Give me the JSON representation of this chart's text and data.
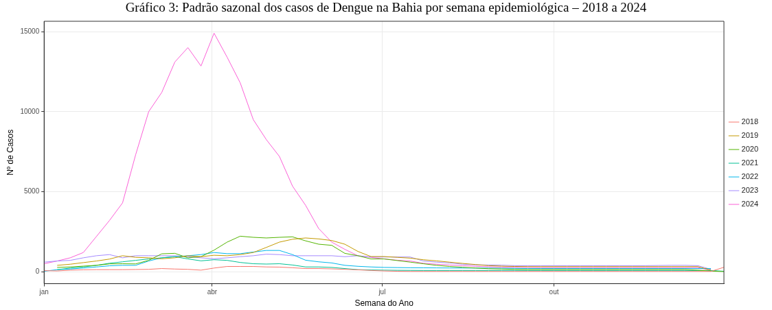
{
  "chart_data": {
    "type": "line",
    "title": "Gráfico 3: Padrão sazonal dos casos de Dengue na Bahia por semana epidemiológica – 2018 a 2024",
    "xlabel": "Semana do Ano",
    "ylabel": "Nº de Casos",
    "x": [
      "--01-01",
      "--01-08",
      "--01-15",
      "--01-22",
      "--01-29",
      "--02-05",
      "--02-12",
      "--02-19",
      "--02-26",
      "--03-05",
      "--03-12",
      "--03-19",
      "--03-26",
      "--04-02",
      "--04-09",
      "--04-16",
      "--04-23",
      "--04-30",
      "--05-07",
      "--05-14",
      "--05-21",
      "--05-28",
      "--06-04",
      "--06-11",
      "--06-18",
      "--06-25",
      "--07-02",
      "--07-09",
      "--07-16",
      "--07-23",
      "--07-30",
      "--08-06",
      "--08-13",
      "--08-20",
      "--08-27",
      "--09-03",
      "--09-10",
      "--09-17",
      "--09-24",
      "--10-01",
      "--10-08",
      "--10-15",
      "--10-22",
      "--10-29",
      "--11-05",
      "--11-12",
      "--11-19",
      "--11-26",
      "--12-03",
      "--12-10",
      "--12-17",
      "--12-24",
      "--12-31"
    ],
    "xlim": [
      "--01-01",
      "--12-31"
    ],
    "xticks": [
      {
        "value": "--01-01",
        "label": "jan"
      },
      {
        "value": "--04-01",
        "label": "abr"
      },
      {
        "value": "--07-01",
        "label": "jul"
      },
      {
        "value": "--10-01",
        "label": "out"
      }
    ],
    "ylim": [
      -745,
      15645
    ],
    "yticks": [
      0,
      5000,
      10000,
      15000
    ],
    "grid": true,
    "legend": "right",
    "marker": "none",
    "line_style": "solid",
    "series": [
      {
        "name": "2018",
        "color": "#f8766d",
        "values": [
          70,
          50,
          100,
          120,
          130,
          130,
          130,
          140,
          150,
          200,
          170,
          150,
          100,
          230,
          330,
          330,
          330,
          300,
          290,
          250,
          200,
          200,
          180,
          150,
          120,
          80,
          50,
          30,
          20,
          20,
          20,
          20,
          20,
          20,
          20,
          20,
          20,
          20,
          20,
          20,
          20,
          20,
          20,
          20,
          20,
          20,
          20,
          20,
          20,
          20,
          20,
          20,
          280
        ]
      },
      {
        "name": "2019",
        "color": "#c49a00",
        "values": [
          null,
          400,
          470,
          570,
          670,
          790,
          1000,
          900,
          870,
          810,
          870,
          1000,
          940,
          1030,
          1000,
          1070,
          1200,
          1520,
          1850,
          2030,
          2110,
          2050,
          1950,
          1720,
          1270,
          950,
          950,
          900,
          850,
          750,
          680,
          600,
          520,
          450,
          380,
          350,
          330,
          320,
          320,
          320,
          320,
          320,
          320,
          320,
          320,
          320,
          320,
          320,
          320,
          320,
          320,
          100,
          null
        ]
      },
      {
        "name": "2020",
        "color": "#53b400",
        "values": [
          null,
          270,
          300,
          350,
          400,
          490,
          500,
          490,
          710,
          1120,
          1150,
          870,
          940,
          1350,
          1850,
          2220,
          2150,
          2110,
          2150,
          2180,
          1930,
          1720,
          1650,
          1150,
          1000,
          800,
          800,
          700,
          600,
          500,
          400,
          330,
          280,
          230,
          190,
          170,
          150,
          140,
          140,
          140,
          140,
          140,
          140,
          140,
          140,
          140,
          140,
          140,
          140,
          140,
          100,
          40,
          10
        ]
      },
      {
        "name": "2021",
        "color": "#00c094",
        "values": [
          null,
          130,
          230,
          300,
          400,
          530,
          620,
          710,
          800,
          870,
          940,
          800,
          680,
          750,
          710,
          580,
          500,
          480,
          500,
          420,
          300,
          300,
          270,
          200,
          130,
          110,
          100,
          90,
          85,
          80,
          80,
          80,
          80,
          80,
          80,
          80,
          80,
          80,
          80,
          80,
          80,
          80,
          80,
          80,
          80,
          80,
          80,
          80,
          80,
          80,
          80,
          80,
          30
        ]
      },
      {
        "name": "2022",
        "color": "#00b6eb",
        "values": [
          30,
          130,
          170,
          230,
          300,
          370,
          400,
          400,
          670,
          870,
          940,
          1000,
          1070,
          1200,
          1130,
          1130,
          1230,
          1330,
          1330,
          1070,
          720,
          620,
          550,
          400,
          340,
          300,
          270,
          260,
          250,
          245,
          240,
          235,
          230,
          230,
          230,
          220,
          210,
          200,
          200,
          200,
          200,
          200,
          200,
          200,
          200,
          200,
          200,
          200,
          200,
          200,
          200,
          200,
          null
        ]
      },
      {
        "name": "2023",
        "color": "#a58aff",
        "values": [
          600,
          670,
          710,
          870,
          1000,
          1070,
          870,
          1000,
          1000,
          1000,
          1000,
          940,
          870,
          810,
          870,
          940,
          1000,
          1100,
          1070,
          1000,
          1000,
          1000,
          1000,
          940,
          1000,
          920,
          920,
          920,
          920,
          670,
          600,
          550,
          470,
          430,
          420,
          410,
          380,
          380,
          380,
          380,
          380,
          380,
          380,
          380,
          380,
          380,
          380,
          390,
          400,
          400,
          380,
          150,
          null
        ]
      },
      {
        "name": "2024",
        "color": "#fb61d7",
        "values": [
          500,
          670,
          870,
          1200,
          2200,
          3200,
          4300,
          7300,
          10000,
          11200,
          13100,
          14000,
          12850,
          14900,
          13400,
          11800,
          9500,
          8250,
          7200,
          5350,
          4150,
          2700,
          1850,
          1400,
          1000,
          900,
          800,
          720,
          670,
          530,
          470,
          420,
          380,
          340,
          310,
          290,
          280,
          270,
          260,
          260,
          260,
          260,
          260,
          260,
          260,
          260,
          260,
          260,
          260,
          260,
          260,
          90,
          null
        ]
      }
    ]
  }
}
